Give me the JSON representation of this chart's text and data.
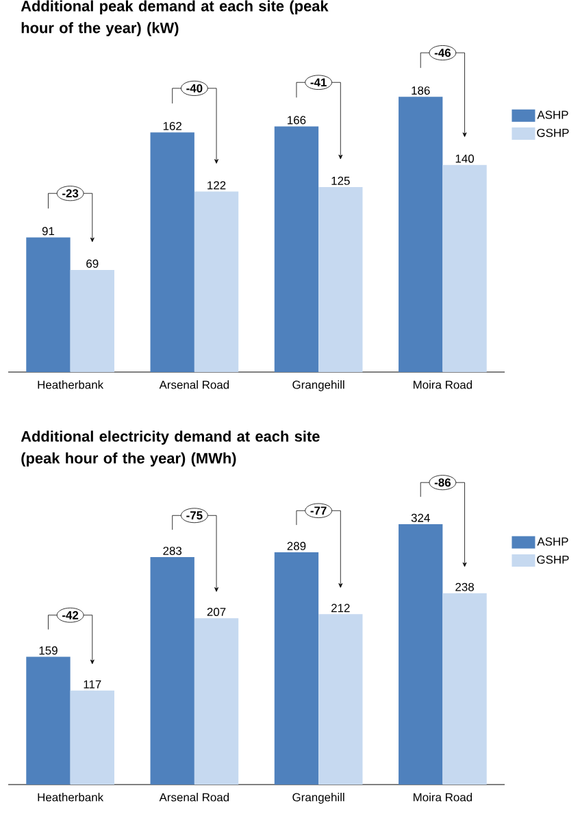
{
  "chart_data": [
    {
      "type": "bar",
      "title": "Additional peak demand at each site (peak hour of the year) (kW)",
      "categories": [
        "Heatherbank",
        "Arsenal Road",
        "Grangehill",
        "Moira Road"
      ],
      "series": [
        {
          "name": "ASHP",
          "color": "#4f81bd",
          "values": [
            91,
            162,
            166,
            186
          ]
        },
        {
          "name": "GSHP",
          "color": "#c6d9f0",
          "values": [
            69,
            122,
            125,
            140
          ]
        }
      ],
      "data_labels": true,
      "legend": "right",
      "annotations": [
        "-23",
        "-40",
        "-41",
        "-46"
      ]
    },
    {
      "type": "bar",
      "title": "Additional electricity demand at each site (peak hour of the year) (MWh)",
      "categories": [
        "Heatherbank",
        "Arsenal Road",
        "Grangehill",
        "Moira Road"
      ],
      "series": [
        {
          "name": "ASHP",
          "color": "#4f81bd",
          "values": [
            159,
            283,
            289,
            324
          ]
        },
        {
          "name": "GSHP",
          "color": "#c6d9f0",
          "values": [
            117,
            207,
            212,
            238
          ]
        }
      ],
      "data_labels": true,
      "legend": "right",
      "annotations": [
        "-42",
        "-75",
        "-77",
        "-86"
      ]
    }
  ]
}
